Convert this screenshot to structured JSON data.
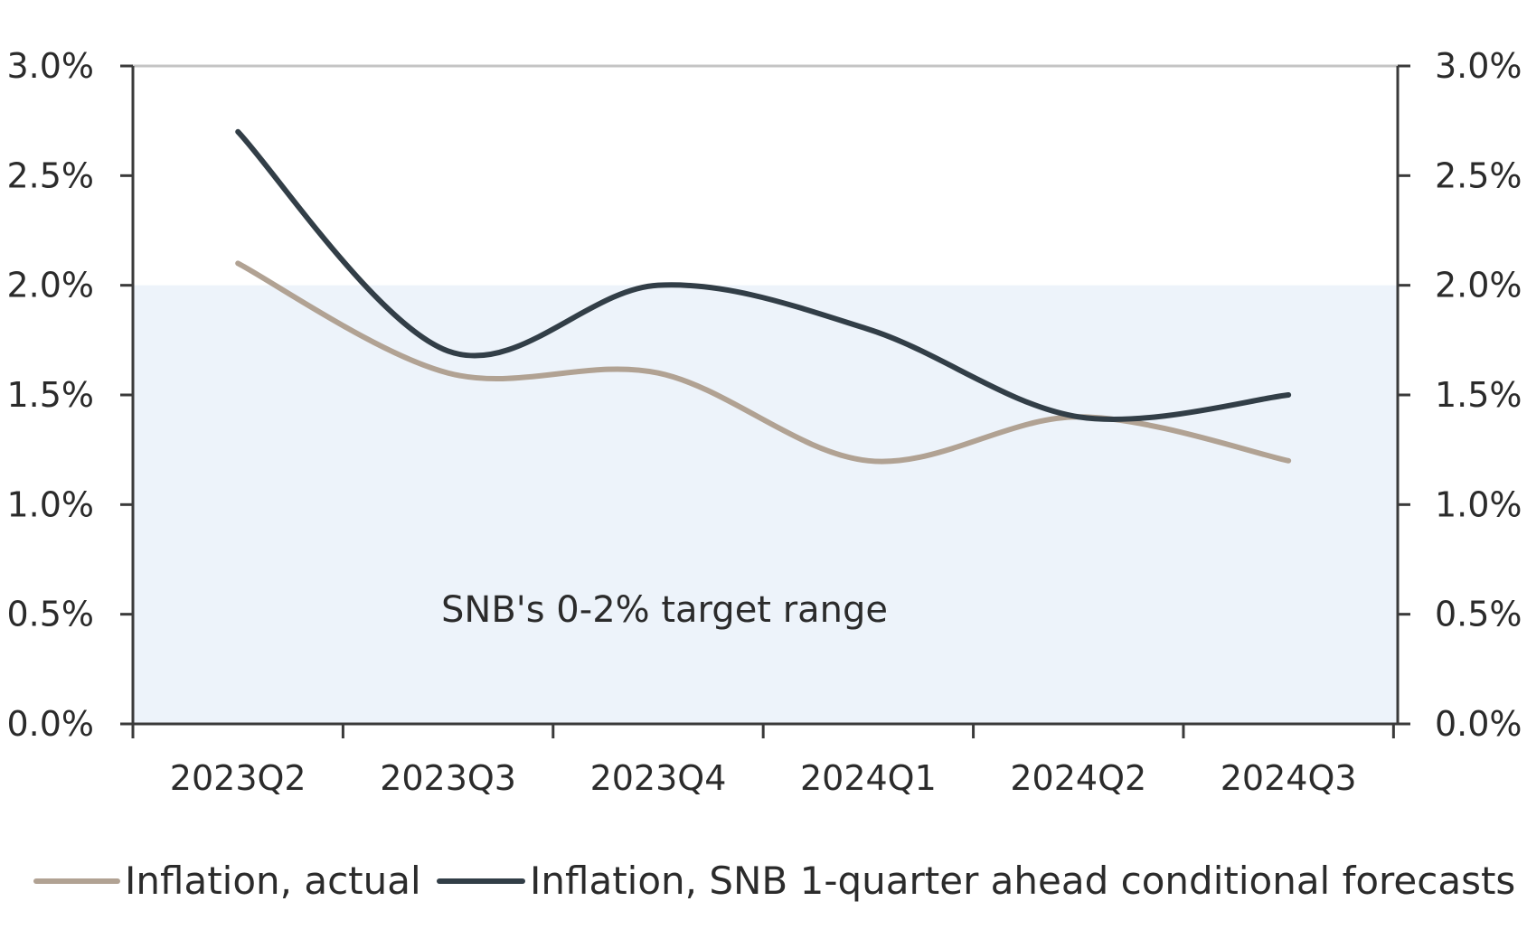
{
  "chart_data": {
    "type": "line",
    "categories": [
      "2023Q2",
      "2023Q3",
      "2023Q4",
      "2024Q1",
      "2024Q2",
      "2024Q3"
    ],
    "series": [
      {
        "name": "Inflation, actual",
        "color": "#b1a293",
        "values": [
          2.1,
          1.6,
          1.6,
          1.2,
          1.4,
          1.2
        ]
      },
      {
        "name": "Inflation, SNB 1-quarter ahead conditional forecasts",
        "color": "#323e47",
        "values": [
          2.7,
          1.7,
          2.0,
          1.8,
          1.4,
          1.5
        ]
      }
    ],
    "ylim": [
      0,
      3
    ],
    "yticks": [
      0,
      0.5,
      1.0,
      1.5,
      2.0,
      2.5,
      3.0
    ],
    "ytick_labels": [
      "0.0%",
      "0.5%",
      "1.0%",
      "1.5%",
      "2.0%",
      "2.5%",
      "3.0%"
    ],
    "target_band": [
      0,
      2
    ],
    "target_band_color": "#edf3fa",
    "annotation": "SNB's 0-2% target range",
    "grid": false,
    "legend_position": "bottom"
  }
}
